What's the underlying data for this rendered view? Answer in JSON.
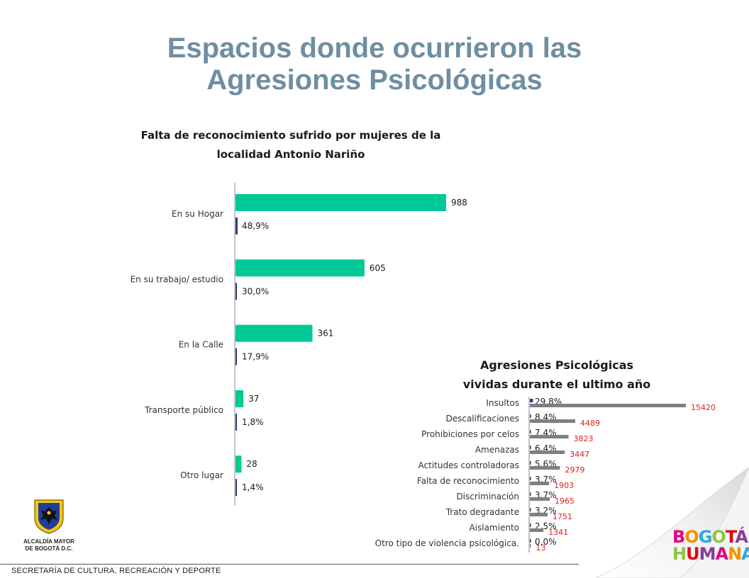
{
  "slide": {
    "title_line1": "Espacios donde ocurrieron las",
    "title_line2": "Agresiones Psicológicas",
    "footer": "SECRETARÍA DE CULTURA, RECREACIÓN Y DEPORTE",
    "logo_left_line1": "ALCALDÍA MAYOR",
    "logo_left_line2": "DE BOGOTÁ D.C.",
    "logo_right_line1": "BOGOTÁ",
    "logo_right_line2": "HUMANA"
  },
  "colors": {
    "title": "#6e8ea2",
    "bar_green": "#00c896",
    "bar_navy": "#2e3a78",
    "bar_gray": "#808080",
    "label_red": "#e0201b"
  },
  "chart_data": [
    {
      "type": "bar",
      "orientation": "horizontal",
      "title_line1": "Falta de reconocimiento sufrido por mujeres de la",
      "title_line2": "localidad  Antonio Nariño",
      "categories": [
        "En su Hogar",
        "En su trabajo/ estudio",
        "En la Calle",
        "Transporte público",
        "Otro lugar"
      ],
      "series": [
        {
          "values": [
            988,
            605,
            361,
            37,
            28
          ],
          "labels": [
            "988",
            "605",
            "361",
            "37",
            "28"
          ]
        },
        {
          "values": [
            48.9,
            30.0,
            17.9,
            1.8,
            1.4
          ],
          "labels": [
            "48,9%",
            "30,0%",
            "17,9%",
            "1,8%",
            "1,4%"
          ]
        }
      ],
      "xlim": [
        0,
        1000
      ],
      "grid": false,
      "legend": "none"
    },
    {
      "type": "bar",
      "orientation": "horizontal",
      "title_line1": "Agresiones Psicológicas",
      "title_line2": "vividas durante el ultimo año",
      "categories": [
        "Insultos",
        "Descalificaciones",
        "Prohibiciones por celos",
        "Amenazas",
        "Actitudes controladoras",
        "Falta de reconocimiento",
        "Discriminación",
        "Trato degradante",
        "Aislamiento",
        "Otro tipo de violencia psicológica."
      ],
      "series": [
        {
          "values": [
            29.8,
            8.4,
            7.4,
            6.4,
            5.6,
            3.7,
            3.7,
            3.2,
            2.5,
            0.0
          ],
          "labels": [
            "29,8%",
            "8,4%",
            "7,4%",
            "6,4%",
            "5,6%",
            "3,7%",
            "3,7%",
            "3,2%",
            "2,5%",
            "0,0%"
          ]
        },
        {
          "values": [
            15420,
            4489,
            3823,
            3447,
            2979,
            1903,
            1965,
            1751,
            1341,
            13
          ],
          "labels": [
            "15420",
            "4489",
            "3823",
            "3447",
            "2979",
            "1903",
            "1965",
            "1751",
            "1341",
            "13"
          ]
        }
      ],
      "xlim": [
        0,
        16000
      ],
      "grid": false,
      "legend": "none"
    }
  ]
}
